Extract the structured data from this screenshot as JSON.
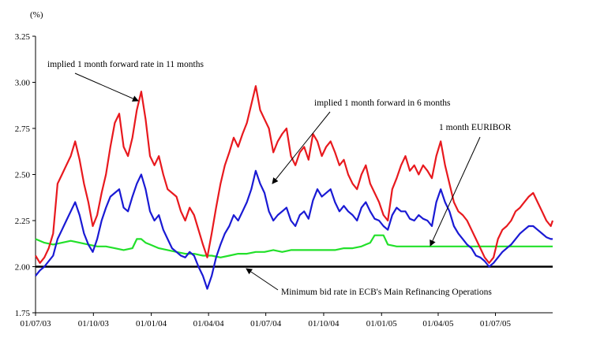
{
  "chart_data": {
    "type": "line",
    "y_unit": "(%)",
    "ylim": [
      1.75,
      3.25
    ],
    "y_ticks": [
      "1.75",
      "2.00",
      "2.25",
      "2.50",
      "2.75",
      "3.00",
      "3.25"
    ],
    "x_range": [
      "01/07/03",
      "30/09/05"
    ],
    "x_ticks": [
      "01/07/03",
      "01/10/03",
      "01/01/04",
      "01/04/04",
      "01/07/04",
      "01/10/04",
      "01/01/05",
      "01/04/05",
      "01/07/05"
    ],
    "grid": false,
    "series": [
      {
        "name": "implied 1 month forward rate in 11 months",
        "color": "#e8191e",
        "x": [
          "01/07/03",
          "08/07/03",
          "15/07/03",
          "22/07/03",
          "29/07/03",
          "05/08/03",
          "12/08/03",
          "19/08/03",
          "26/08/03",
          "02/09/03",
          "09/09/03",
          "16/09/03",
          "23/09/03",
          "30/09/03",
          "07/10/03",
          "14/10/03",
          "21/10/03",
          "28/10/03",
          "04/11/03",
          "11/11/03",
          "18/11/03",
          "25/11/03",
          "02/12/03",
          "09/12/03",
          "16/12/03",
          "23/12/03",
          "30/12/03",
          "06/01/04",
          "13/01/04",
          "20/01/04",
          "27/01/04",
          "03/02/04",
          "10/02/04",
          "17/02/04",
          "24/02/04",
          "02/03/04",
          "09/03/04",
          "16/03/04",
          "23/03/04",
          "30/03/04",
          "06/04/04",
          "13/04/04",
          "20/04/04",
          "27/04/04",
          "04/05/04",
          "11/05/04",
          "18/05/04",
          "25/05/04",
          "01/06/04",
          "08/06/04",
          "15/06/04",
          "22/06/04",
          "29/06/04",
          "06/07/04",
          "13/07/04",
          "20/07/04",
          "27/07/04",
          "03/08/04",
          "10/08/04",
          "17/08/04",
          "24/08/04",
          "31/08/04",
          "07/09/04",
          "14/09/04",
          "21/09/04",
          "28/09/04",
          "05/10/04",
          "12/10/04",
          "19/10/04",
          "26/10/04",
          "02/11/04",
          "09/11/04",
          "16/11/04",
          "23/11/04",
          "30/11/04",
          "07/12/04",
          "14/12/04",
          "21/12/04",
          "28/12/04",
          "04/01/05",
          "11/01/05",
          "18/01/05",
          "25/01/05",
          "01/02/05",
          "08/02/05",
          "15/02/05",
          "22/02/05",
          "01/03/05",
          "08/03/05",
          "15/03/05",
          "22/03/05",
          "29/03/05",
          "05/04/05",
          "12/04/05",
          "19/04/05",
          "26/04/05",
          "03/05/05",
          "10/05/05",
          "17/05/05",
          "24/05/05",
          "31/05/05",
          "07/06/05",
          "14/06/05",
          "21/06/05",
          "28/06/05",
          "05/07/05",
          "12/07/05",
          "19/07/05",
          "26/07/05",
          "02/08/05",
          "09/08/05",
          "16/08/05",
          "23/08/05",
          "30/08/05",
          "06/09/05",
          "13/09/05",
          "20/09/05",
          "27/09/05",
          "30/09/05"
        ],
        "y": [
          2.06,
          2.02,
          2.05,
          2.1,
          2.18,
          2.45,
          2.5,
          2.55,
          2.6,
          2.68,
          2.58,
          2.45,
          2.35,
          2.22,
          2.28,
          2.4,
          2.5,
          2.65,
          2.78,
          2.83,
          2.65,
          2.6,
          2.7,
          2.85,
          2.95,
          2.8,
          2.6,
          2.55,
          2.6,
          2.5,
          2.42,
          2.4,
          2.38,
          2.3,
          2.25,
          2.32,
          2.28,
          2.2,
          2.12,
          2.05,
          2.18,
          2.32,
          2.45,
          2.55,
          2.62,
          2.7,
          2.65,
          2.72,
          2.78,
          2.88,
          2.98,
          2.85,
          2.8,
          2.75,
          2.62,
          2.68,
          2.72,
          2.75,
          2.6,
          2.55,
          2.62,
          2.65,
          2.58,
          2.72,
          2.68,
          2.6,
          2.65,
          2.68,
          2.62,
          2.55,
          2.58,
          2.5,
          2.45,
          2.42,
          2.5,
          2.55,
          2.45,
          2.4,
          2.35,
          2.28,
          2.25,
          2.42,
          2.48,
          2.55,
          2.6,
          2.52,
          2.55,
          2.5,
          2.55,
          2.52,
          2.48,
          2.6,
          2.68,
          2.55,
          2.45,
          2.35,
          2.3,
          2.28,
          2.25,
          2.2,
          2.15,
          2.1,
          2.05,
          2.02,
          2.05,
          2.15,
          2.2,
          2.22,
          2.25,
          2.3,
          2.32,
          2.35,
          2.38,
          2.4,
          2.35,
          2.3,
          2.25,
          2.22,
          2.25
        ]
      },
      {
        "name": "implied 1 month forward in  6 months",
        "color": "#1a1ad4",
        "x": [
          "01/07/03",
          "08/07/03",
          "15/07/03",
          "22/07/03",
          "29/07/03",
          "05/08/03",
          "12/08/03",
          "19/08/03",
          "26/08/03",
          "02/09/03",
          "09/09/03",
          "16/09/03",
          "23/09/03",
          "30/09/03",
          "07/10/03",
          "14/10/03",
          "21/10/03",
          "28/10/03",
          "04/11/03",
          "11/11/03",
          "18/11/03",
          "25/11/03",
          "02/12/03",
          "09/12/03",
          "16/12/03",
          "23/12/03",
          "30/12/03",
          "06/01/04",
          "13/01/04",
          "20/01/04",
          "27/01/04",
          "03/02/04",
          "10/02/04",
          "17/02/04",
          "24/02/04",
          "02/03/04",
          "09/03/04",
          "16/03/04",
          "23/03/04",
          "30/03/04",
          "06/04/04",
          "13/04/04",
          "20/04/04",
          "27/04/04",
          "04/05/04",
          "11/05/04",
          "18/05/04",
          "25/05/04",
          "01/06/04",
          "08/06/04",
          "15/06/04",
          "22/06/04",
          "29/06/04",
          "06/07/04",
          "13/07/04",
          "20/07/04",
          "27/07/04",
          "03/08/04",
          "10/08/04",
          "17/08/04",
          "24/08/04",
          "31/08/04",
          "07/09/04",
          "14/09/04",
          "21/09/04",
          "28/09/04",
          "05/10/04",
          "12/10/04",
          "19/10/04",
          "26/10/04",
          "02/11/04",
          "09/11/04",
          "16/11/04",
          "23/11/04",
          "30/11/04",
          "07/12/04",
          "14/12/04",
          "21/12/04",
          "28/12/04",
          "04/01/05",
          "11/01/05",
          "18/01/05",
          "25/01/05",
          "01/02/05",
          "08/02/05",
          "15/02/05",
          "22/02/05",
          "01/03/05",
          "08/03/05",
          "15/03/05",
          "22/03/05",
          "29/03/05",
          "05/04/05",
          "12/04/05",
          "19/04/05",
          "26/04/05",
          "03/05/05",
          "10/05/05",
          "17/05/05",
          "24/05/05",
          "31/05/05",
          "07/06/05",
          "14/06/05",
          "21/06/05",
          "28/06/05",
          "05/07/05",
          "12/07/05",
          "19/07/05",
          "26/07/05",
          "02/08/05",
          "09/08/05",
          "16/08/05",
          "23/08/05",
          "30/08/05",
          "06/09/05",
          "13/09/05",
          "20/09/05",
          "27/09/05",
          "30/09/05"
        ],
        "y": [
          1.95,
          1.98,
          2.0,
          2.03,
          2.06,
          2.15,
          2.2,
          2.25,
          2.3,
          2.35,
          2.28,
          2.18,
          2.12,
          2.08,
          2.15,
          2.25,
          2.32,
          2.38,
          2.4,
          2.42,
          2.32,
          2.3,
          2.38,
          2.45,
          2.5,
          2.42,
          2.3,
          2.25,
          2.28,
          2.2,
          2.15,
          2.1,
          2.08,
          2.06,
          2.05,
          2.08,
          2.06,
          2.0,
          1.95,
          1.88,
          1.95,
          2.05,
          2.12,
          2.18,
          2.22,
          2.28,
          2.25,
          2.3,
          2.35,
          2.42,
          2.52,
          2.45,
          2.4,
          2.3,
          2.25,
          2.28,
          2.3,
          2.32,
          2.25,
          2.22,
          2.28,
          2.3,
          2.26,
          2.36,
          2.42,
          2.38,
          2.4,
          2.42,
          2.35,
          2.3,
          2.33,
          2.3,
          2.28,
          2.25,
          2.32,
          2.35,
          2.3,
          2.26,
          2.25,
          2.22,
          2.2,
          2.28,
          2.32,
          2.3,
          2.3,
          2.26,
          2.25,
          2.28,
          2.26,
          2.25,
          2.22,
          2.35,
          2.42,
          2.35,
          2.3,
          2.22,
          2.18,
          2.15,
          2.12,
          2.1,
          2.06,
          2.05,
          2.03,
          2.0,
          2.02,
          2.05,
          2.08,
          2.1,
          2.12,
          2.15,
          2.18,
          2.2,
          2.22,
          2.22,
          2.2,
          2.18,
          2.16,
          2.15,
          2.15
        ]
      },
      {
        "name": "1 month EURIBOR",
        "color": "#22e02a",
        "x": [
          "01/07/03",
          "15/07/03",
          "29/07/03",
          "12/08/03",
          "26/08/03",
          "09/09/03",
          "23/09/03",
          "07/10/03",
          "21/10/03",
          "04/11/03",
          "18/11/03",
          "02/12/03",
          "09/12/03",
          "16/12/03",
          "23/12/03",
          "30/12/03",
          "13/01/04",
          "27/01/04",
          "10/02/04",
          "24/02/04",
          "09/03/04",
          "23/03/04",
          "06/04/04",
          "20/04/04",
          "04/05/04",
          "18/05/04",
          "01/06/04",
          "15/06/04",
          "29/06/04",
          "13/07/04",
          "27/07/04",
          "10/08/04",
          "24/08/04",
          "07/09/04",
          "21/09/04",
          "05/10/04",
          "19/10/04",
          "02/11/04",
          "16/11/04",
          "30/11/04",
          "07/12/04",
          "14/12/04",
          "21/12/04",
          "28/12/04",
          "04/01/05",
          "11/01/05",
          "25/01/05",
          "08/02/05",
          "22/02/05",
          "08/03/05",
          "22/03/05",
          "05/04/05",
          "19/04/05",
          "03/05/05",
          "17/05/05",
          "31/05/05",
          "14/06/05",
          "28/06/05",
          "12/07/05",
          "26/07/05",
          "09/08/05",
          "23/08/05",
          "06/09/05",
          "20/09/05",
          "30/09/05"
        ],
        "y": [
          2.15,
          2.13,
          2.12,
          2.13,
          2.14,
          2.13,
          2.12,
          2.11,
          2.11,
          2.1,
          2.09,
          2.1,
          2.15,
          2.15,
          2.13,
          2.12,
          2.1,
          2.09,
          2.08,
          2.07,
          2.07,
          2.06,
          2.06,
          2.05,
          2.06,
          2.07,
          2.07,
          2.08,
          2.08,
          2.09,
          2.08,
          2.09,
          2.09,
          2.09,
          2.09,
          2.09,
          2.09,
          2.1,
          2.1,
          2.11,
          2.12,
          2.13,
          2.17,
          2.17,
          2.17,
          2.12,
          2.11,
          2.11,
          2.11,
          2.11,
          2.11,
          2.11,
          2.11,
          2.11,
          2.11,
          2.11,
          2.11,
          2.11,
          2.11,
          2.11,
          2.11,
          2.11,
          2.11,
          2.11,
          2.11
        ]
      },
      {
        "name": "Minimum bid rate in ECB's Main Refinancing Operations",
        "color": "#000000",
        "x": [
          "01/07/03",
          "30/09/05"
        ],
        "y": [
          2.0,
          2.0
        ]
      }
    ],
    "annotations": [
      {
        "text": "implied 1 month forward rate in 11 months",
        "color": "#000000"
      },
      {
        "text": "implied 1 month forward in  6 months",
        "color": "#000000"
      },
      {
        "text": "1 month EURIBOR",
        "color": "#000000"
      },
      {
        "text": "Minimum bid rate in ECB's Main Refinancing Operations",
        "color": "#000000"
      }
    ]
  }
}
